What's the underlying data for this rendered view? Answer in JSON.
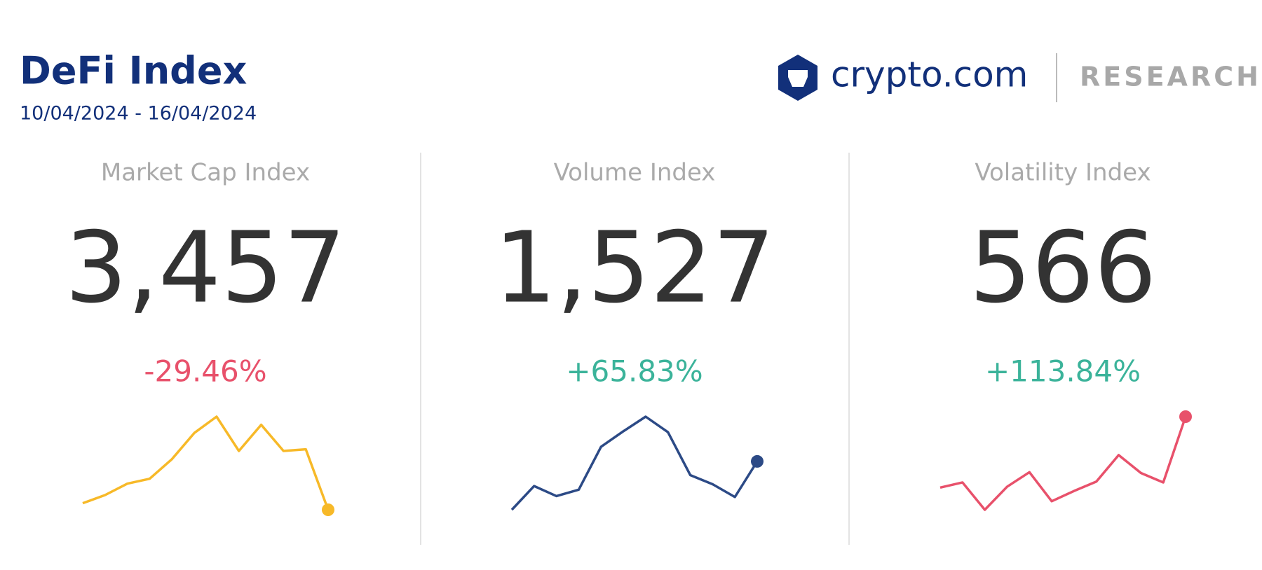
{
  "header": {
    "title": "DeFi Index",
    "date_range": "10/04/2024 - 16/04/2024"
  },
  "logo": {
    "brand": "crypto.com",
    "section": "RESEARCH"
  },
  "chart_data": [
    {
      "type": "line",
      "title": "Market Cap Index",
      "index_value": "3,457",
      "change": "-29.46%",
      "change_color": "#e8516b",
      "color": "#f7b928",
      "values": [
        30,
        35,
        42,
        45,
        57,
        73,
        83,
        62,
        78,
        62,
        63,
        26
      ]
    },
    {
      "type": "line",
      "title": "Volume Index",
      "index_value": "1,527",
      "change": "+65.83%",
      "change_color": "#3bb39a",
      "color": "#2c4a86",
      "values": [
        12,
        38,
        27,
        34,
        81,
        98,
        114,
        97,
        50,
        40,
        26,
        65
      ]
    },
    {
      "type": "line",
      "title": "Volatility Index",
      "index_value": "566",
      "change": "+113.84%",
      "change_color": "#3bb39a",
      "color": "#e8516b",
      "values": [
        35,
        41,
        9,
        36,
        53,
        19,
        31,
        42,
        73,
        52,
        41,
        118
      ]
    }
  ]
}
